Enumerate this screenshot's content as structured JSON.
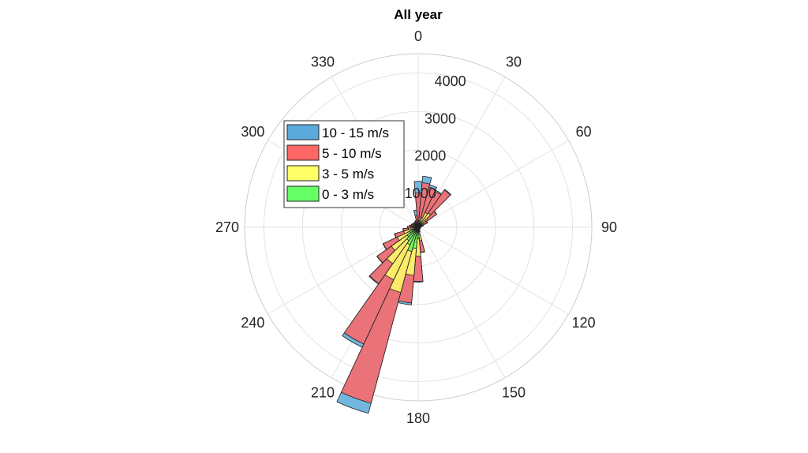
{
  "chart_data": {
    "type": "polar-bar",
    "title": "All year",
    "angle_ticks": [
      "0",
      "30",
      "60",
      "90",
      "120",
      "150",
      "180",
      "210",
      "240",
      "270",
      "300",
      "330"
    ],
    "radial_ticks": [
      "1000",
      "2000",
      "3000",
      "4000"
    ],
    "rlim": [
      0,
      4500
    ],
    "direction_bin_width_deg": 10,
    "directions": [
      0,
      10,
      20,
      30,
      40,
      50,
      60,
      70,
      80,
      90,
      100,
      110,
      120,
      130,
      140,
      150,
      160,
      170,
      180,
      190,
      200,
      210,
      220,
      230,
      240,
      250,
      260,
      270,
      280,
      290,
      300,
      310,
      320,
      330,
      340,
      350
    ],
    "series": [
      {
        "name": "0 - 3 m/s",
        "color": "#66ff66",
        "values": [
          40,
          50,
          80,
          140,
          120,
          70,
          40,
          30,
          20,
          20,
          20,
          20,
          20,
          20,
          20,
          20,
          40,
          120,
          300,
          550,
          650,
          500,
          420,
          350,
          250,
          160,
          100,
          80,
          70,
          60,
          50,
          45,
          40,
          40,
          40,
          40
        ]
      },
      {
        "name": "3 - 5 m/s",
        "color": "#ffff66",
        "values": [
          90,
          110,
          190,
          280,
          330,
          180,
          80,
          50,
          30,
          20,
          20,
          20,
          20,
          20,
          20,
          20,
          40,
          230,
          450,
          700,
          1100,
          1000,
          730,
          500,
          350,
          230,
          160,
          110,
          90,
          70,
          60,
          50,
          50,
          50,
          60,
          60
        ]
      },
      {
        "name": "5 - 10 m/s",
        "color": "#ff6666",
        "values": [
          760,
          1000,
          810,
          610,
          730,
          330,
          140,
          60,
          40,
          20,
          20,
          20,
          20,
          20,
          20,
          20,
          40,
          300,
          650,
          720,
          2970,
          1840,
          630,
          450,
          400,
          240,
          130,
          80,
          60,
          50,
          50,
          60,
          60,
          60,
          70,
          200
        ]
      },
      {
        "name": "10 - 15 m/s",
        "color": "#5aaadc",
        "values": [
          300,
          170,
          60,
          30,
          20,
          10,
          10,
          0,
          0,
          0,
          0,
          0,
          0,
          0,
          0,
          0,
          0,
          10,
          20,
          50,
          270,
          90,
          20,
          10,
          10,
          10,
          10,
          10,
          10,
          10,
          10,
          10,
          10,
          10,
          20,
          150
        ]
      }
    ],
    "stack_order_drawn": [
      "10 - 15 m/s",
      "5 - 10 m/s",
      "3 - 5 m/s",
      "0 - 3 m/s"
    ],
    "legend": [
      "10 - 15 m/s",
      "5 - 10 m/s",
      "3 - 5 m/s",
      "0 - 3 m/s"
    ],
    "legend_position": "upper-left",
    "grid": true
  }
}
